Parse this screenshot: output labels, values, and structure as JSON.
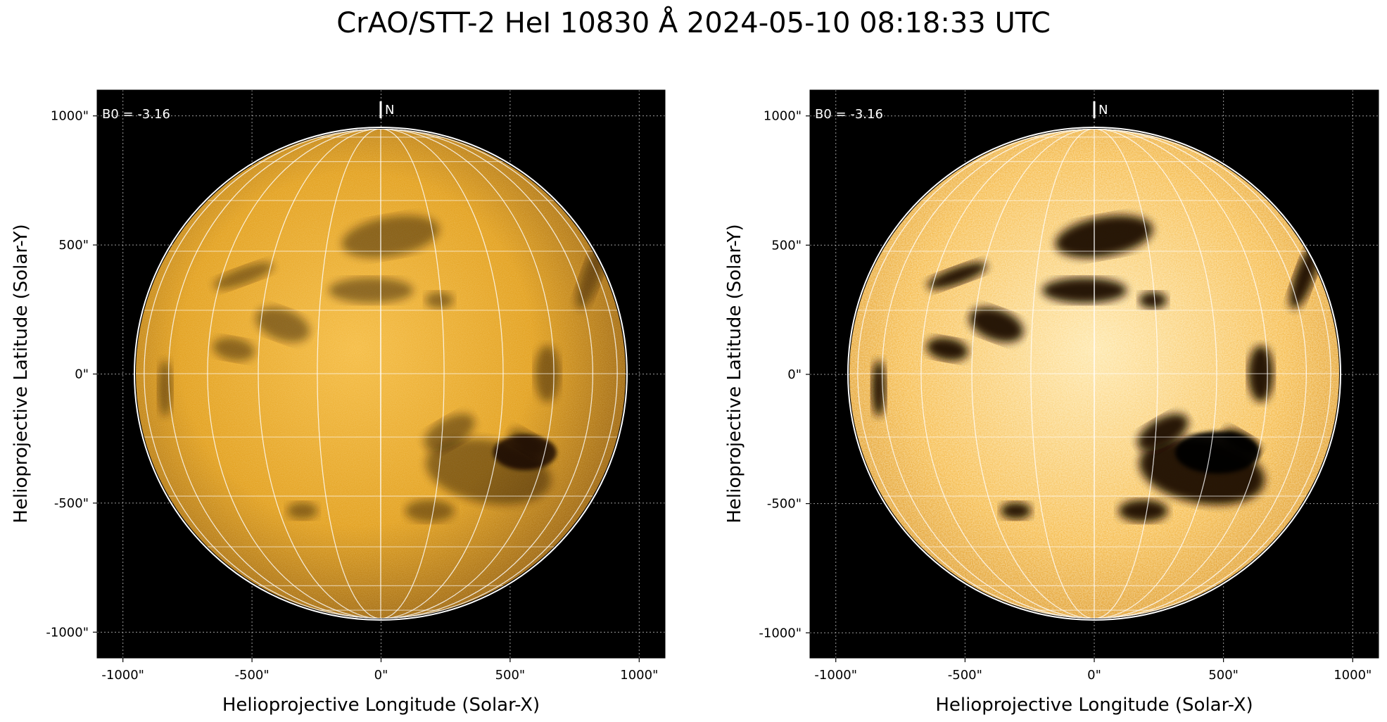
{
  "figure": {
    "title": "CrAO/STT-2 HeI 10830 Å 2024-05-10 08:18:33 UTC",
    "colors": {
      "background": "#000000",
      "disk": "#e8a416",
      "disk_light": "#ffd98a",
      "feature_dark": "#1a0e00",
      "grid": "#ffffff"
    },
    "panels": [
      {
        "id": "left",
        "variant": "normal",
        "b0_label": "B0 = -3.16",
        "north_label": "N",
        "xlabel": "Helioprojective Longitude (Solar-X)",
        "ylabel": "Helioprojective Latitude (Solar-Y)",
        "xticks": [
          "-1000\"",
          "-500\"",
          "0\"",
          "500\"",
          "1000\""
        ],
        "yticks": [
          "1000\"",
          "500\"",
          "0\"",
          "-500\"",
          "-1000\""
        ]
      },
      {
        "id": "right",
        "variant": "enhanced",
        "b0_label": "B0 = -3.16",
        "north_label": "N",
        "xlabel": "Helioprojective Longitude (Solar-X)",
        "ylabel": "Helioprojective Latitude (Solar-Y)",
        "xticks": [
          "-1000\"",
          "-500\"",
          "0\"",
          "500\"",
          "1000\""
        ],
        "yticks": [
          "1000\"",
          "500\"",
          "0\"",
          "-500\"",
          "-1000\""
        ]
      }
    ]
  }
}
